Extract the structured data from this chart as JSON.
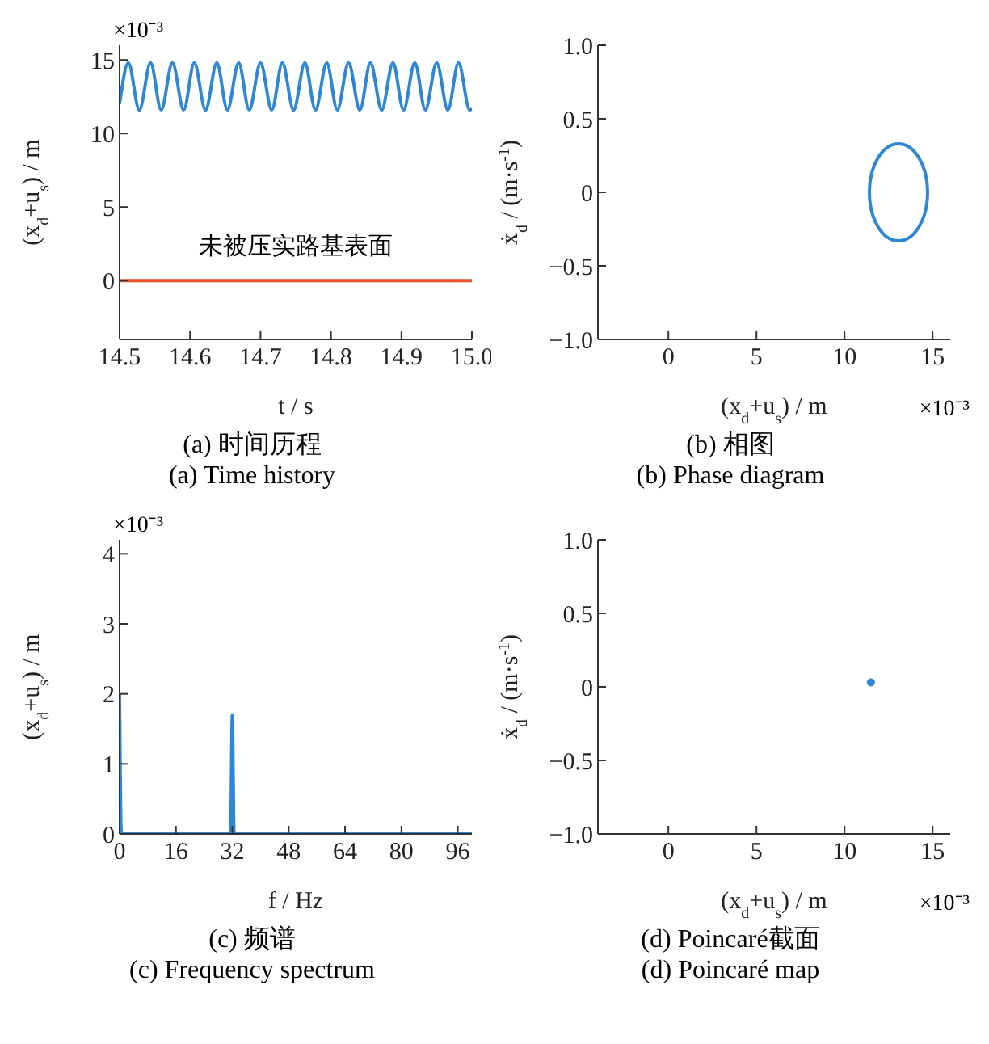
{
  "chart_data": [
    {
      "type": "line",
      "title": "(a) 时间历程",
      "subtitle": "(a) Time history",
      "xlabel": "t / s",
      "ylabel": "(x$_{d}$+u$_{s}$) / m",
      "xlim": [
        14.5,
        15.0
      ],
      "xticks": [
        14.5,
        14.6,
        14.7,
        14.8,
        14.9,
        {
          "value": 15,
          "label": "15.0"
        }
      ],
      "ylim": [
        -4,
        16
      ],
      "yticks": [
        0,
        5,
        10,
        15
      ],
      "series": [
        {
          "color": "#2e86d6",
          "x": [
            14.5,
            14.5125,
            14.528,
            14.544,
            14.559,
            14.575,
            14.591,
            14.606,
            14.622,
            14.638,
            14.653,
            14.669,
            14.684,
            14.7,
            14.716,
            14.731,
            14.747,
            14.763,
            14.778,
            14.794,
            14.809,
            14.825,
            14.841,
            14.856,
            14.872,
            14.888,
            14.903,
            14.919,
            14.934,
            14.95,
            14.966,
            14.981,
            14.997,
            15.0
          ],
          "values": [
            12.0,
            14.8,
            11.6,
            14.8,
            11.6,
            14.8,
            11.6,
            14.8,
            11.6,
            14.8,
            11.6,
            14.8,
            11.6,
            14.8,
            11.6,
            14.8,
            11.6,
            14.8,
            11.6,
            14.8,
            11.6,
            14.8,
            11.6,
            14.8,
            11.6,
            14.8,
            11.6,
            14.8,
            11.6,
            14.8,
            11.6,
            14.8,
            11.6,
            11.7
          ]
        },
        {
          "color": "#e8502a",
          "x": [
            14.5,
            15.0
          ],
          "values": [
            0,
            0
          ]
        }
      ],
      "annotations": [
        "×10⁻³",
        "未被压实路基表面"
      ]
    },
    {
      "type": "line",
      "title": "(b) 相图",
      "subtitle": "(b) Phase diagram",
      "xlabel": "(x$_{d}$+u$_{s}$) / m",
      "ylabel": "ẋ$_{d}$ / (m·s$^{-1}$)",
      "xlim": [
        -4,
        16
      ],
      "xticks": [
        0,
        5,
        10,
        15
      ],
      "ylim": [
        -1,
        1
      ],
      "yticks": [
        {
          "value": -1,
          "label": "−1.0"
        },
        {
          "value": -0.5,
          "label": "−0.5"
        },
        0,
        0.5,
        {
          "value": 1,
          "label": "1.0"
        }
      ],
      "annotations": [
        "×10⁻³"
      ]
    },
    {
      "type": "line",
      "title": "(c) 频谱",
      "subtitle": "(c) Frequency spectrum",
      "xlabel": "f / Hz",
      "ylabel": "(x$_{d}$+u$_{s}$) / m",
      "xlim": [
        0,
        100
      ],
      "xticks": [
        0,
        16,
        32,
        48,
        64,
        80,
        96
      ],
      "ylim": [
        0,
        4.2
      ],
      "yticks": [
        0,
        1,
        2,
        3,
        4
      ],
      "series": [
        {
          "color": "#2e86d6",
          "x": [
            0,
            0.5,
            31.5,
            32,
            32.5,
            100
          ],
          "values": [
            2.0,
            0,
            0,
            1.7,
            0,
            0
          ]
        }
      ],
      "annotations": [
        "×10⁻³"
      ]
    },
    {
      "type": "scatter",
      "title": "(d) Poincaré截面",
      "subtitle": "(d) Poincaré map",
      "xlabel": "(x$_{d}$+u$_{s}$) / m",
      "ylabel": "ẋ$_{d}$ / (m·s$^{-1}$)",
      "xlim": [
        -4,
        16
      ],
      "xticks": [
        0,
        5,
        10,
        15
      ],
      "ylim": [
        -1,
        1
      ],
      "yticks": [
        {
          "value": -1,
          "label": "−1.0"
        },
        {
          "value": -0.5,
          "label": "−0.5"
        },
        0,
        0.5,
        {
          "value": 1,
          "label": "1.0"
        }
      ],
      "marker": "circle",
      "series": [
        {
          "color": "#2e86d6",
          "x": [
            11.5
          ],
          "values": [
            0.03
          ]
        }
      ],
      "annotations": [
        "×10⁻³"
      ]
    }
  ]
}
